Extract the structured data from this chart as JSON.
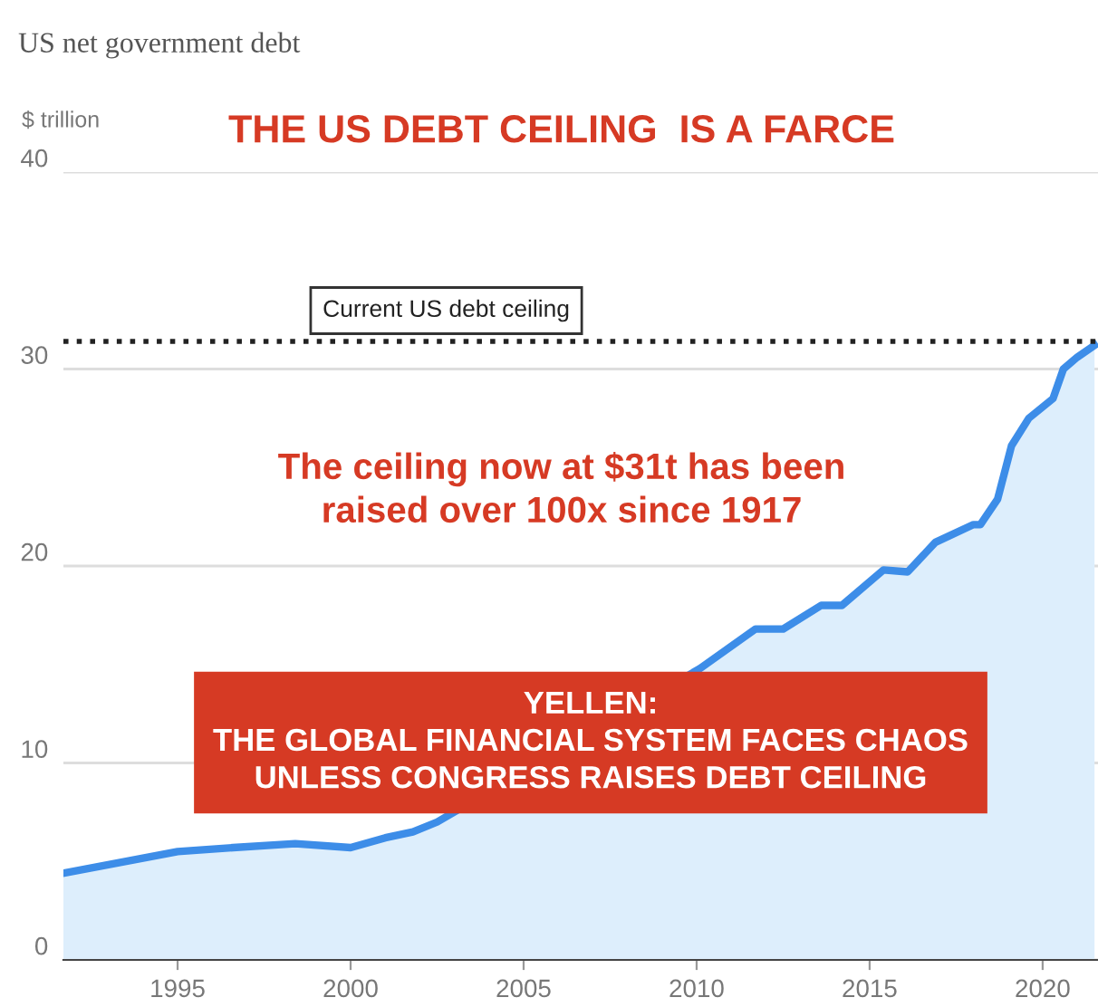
{
  "chart_data": {
    "type": "area",
    "title": "US net government debt",
    "ylabel": "$ trillion",
    "x": [
      1991.7,
      1995,
      1996.6,
      1998.4,
      2000,
      2001,
      2001.8,
      2002.5,
      2010.1,
      2011.7,
      2012.5,
      2013.6,
      2014.2,
      2015.4,
      2016.1,
      2016.9,
      2018.0,
      2018.2,
      2018.7,
      2019.1,
      2019.6,
      2020.3,
      2020.6,
      2021.0,
      2021.5
    ],
    "series": [
      {
        "color": "#3d8de8",
        "values": [
          4.4,
          5.5,
          5.7,
          5.9,
          5.7,
          6.2,
          6.5,
          7.0,
          14.8,
          16.8,
          16.8,
          18.0,
          18.0,
          19.8,
          19.7,
          21.2,
          22.1,
          22.1,
          23.4,
          26.1,
          27.5,
          28.5,
          30.0,
          30.6,
          31.2
        ]
      }
    ],
    "xlim": [
      1991.7,
      2021.6
    ],
    "ylim": [
      0,
      40
    ],
    "xticks": [
      1995,
      2000,
      2005,
      2010,
      2015,
      2020
    ],
    "yticks": [
      0,
      10,
      20,
      30,
      40
    ],
    "grid": "y",
    "ref_lines": [
      {
        "axis": "y",
        "value": 31.4,
        "label": "Current US debt ceiling",
        "color": "#222222",
        "line_style": "dotted"
      }
    ],
    "annotations": [
      "THE US DEBT CEILING  IS A FARCE",
      "The ceiling now at $31t has been\nraised over 100x since 1917",
      "YELLEN:\nTHE GLOBAL FINANCIAL SYSTEM FACES CHAOS\nUNLESS CONGRESS RAISES DEBT CEILING"
    ]
  }
}
